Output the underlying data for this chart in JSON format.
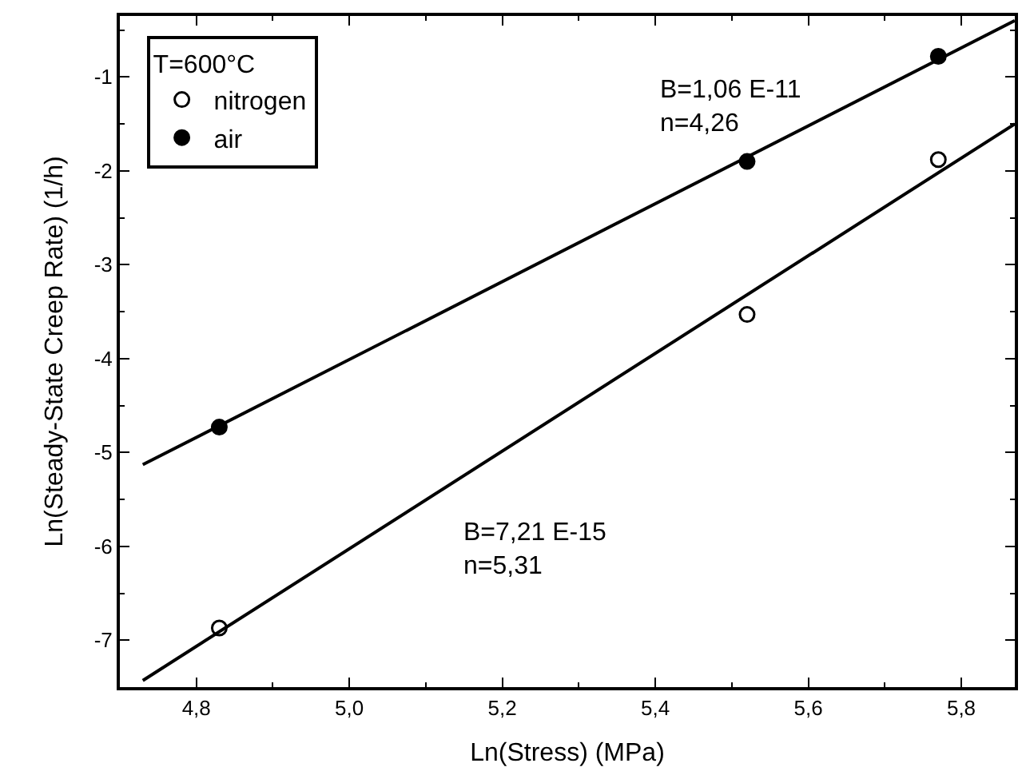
{
  "chart_data": {
    "type": "scatter",
    "xlabel": "Ln(Stress) (MPa)",
    "ylabel": "Ln(Steady-State Creep Rate) (1/h)",
    "legend_title": "T=600°C",
    "legend": "top left",
    "xlim": [
      4.7,
      5.87
    ],
    "ylim": [
      -7.5,
      -0.35
    ],
    "xticks": [
      {
        "value": 4.8,
        "label": "4,8"
      },
      {
        "value": 5.0,
        "label": "5,0"
      },
      {
        "value": 5.2,
        "label": "5,2"
      },
      {
        "value": 5.4,
        "label": "5,4"
      },
      {
        "value": 5.6,
        "label": "5,6"
      },
      {
        "value": 5.8,
        "label": "5,8"
      }
    ],
    "yticks": [
      -7,
      -6,
      -5,
      -4,
      -3,
      -2,
      -1
    ],
    "series": [
      {
        "name": "nitrogen",
        "color": "#000000",
        "marker": "circle-open",
        "x": [
          4.83,
          5.52,
          5.77
        ],
        "values": [
          -6.87,
          -3.53,
          -1.88
        ]
      },
      {
        "name": "air",
        "color": "#000000",
        "marker": "circle",
        "x": [
          4.83,
          5.52,
          5.77
        ],
        "values": [
          -4.73,
          -1.9,
          -0.78
        ]
      },
      {
        "type": "line",
        "color": "#000000",
        "x": [
          4.73,
          5.87
        ],
        "values": [
          -5.13,
          -0.4
        ]
      },
      {
        "type": "line",
        "color": "#000000",
        "x": [
          4.73,
          5.87
        ],
        "values": [
          -7.43,
          -1.5
        ]
      }
    ],
    "annotations": [
      "B=1,06 E-11\nn=4,26",
      "B=7,21 E-15\nn=5,31"
    ]
  }
}
